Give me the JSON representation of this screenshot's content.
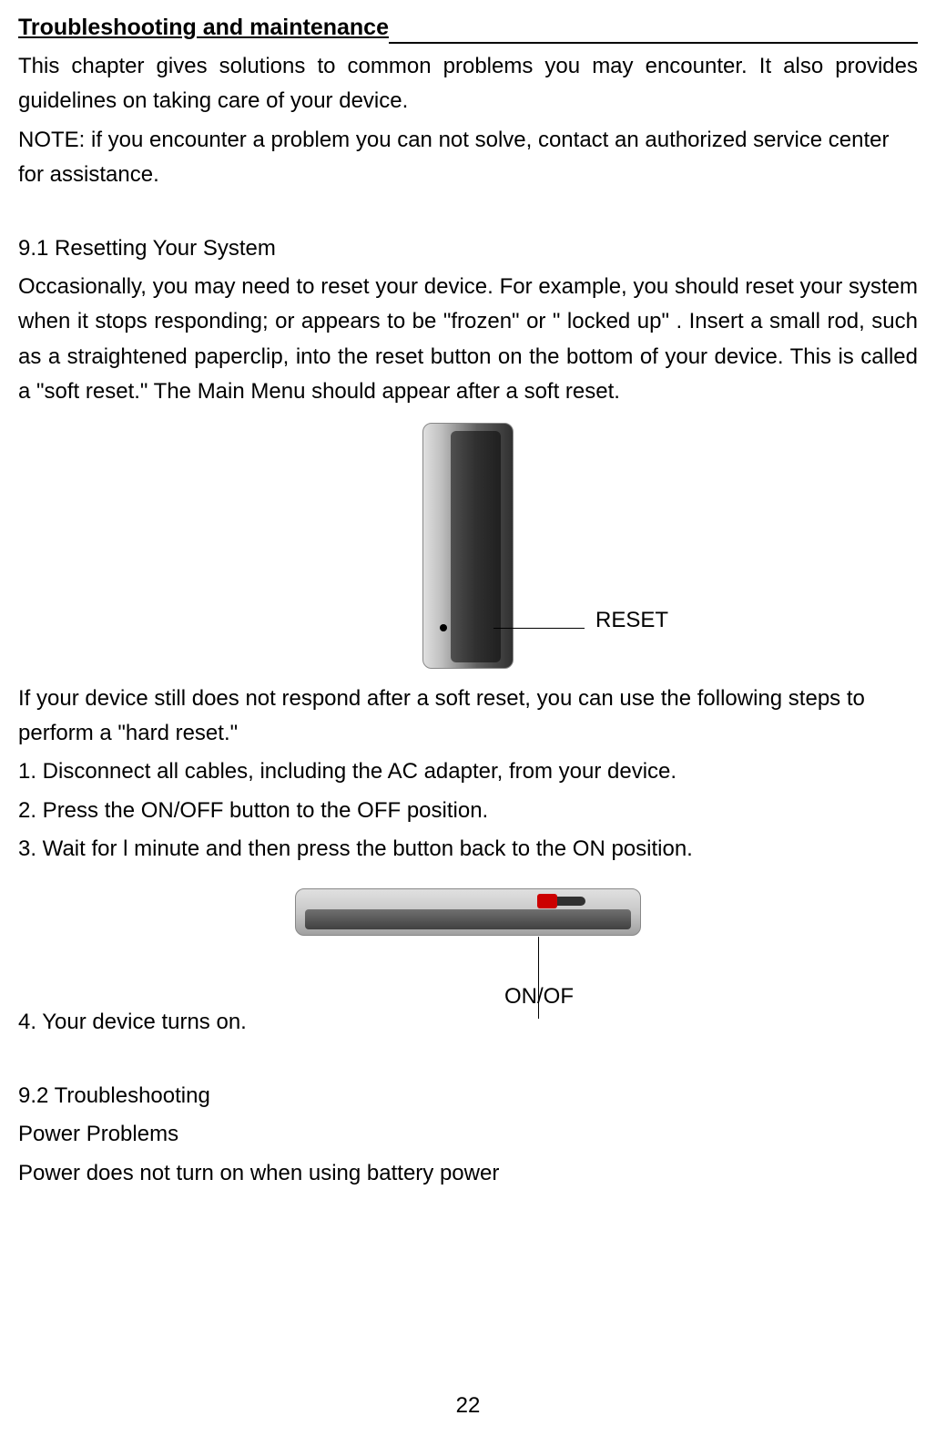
{
  "title": "Troubleshooting and maintenance",
  "intro": "This chapter gives solutions to common problems you may encounter. It also provides guidelines on taking care of your device.",
  "note": "NOTE: if you encounter a problem you can not solve, contact an authorized service center for assistance.",
  "section9_1_heading": "9.1 Resetting Your System",
  "section9_1_body": "Occasionally, you may need to reset your device. For example, you should reset your system when it stops responding; or appears to be \"frozen\" or \" locked up\" . Insert a small rod, such as a straightened paperclip, into the reset button on the bottom of your device. This is called a \"soft reset.\" The Main Menu should appear after a soft reset.",
  "reset_label": "RESET",
  "hard_reset_intro": "If your device still does not respond after a soft reset, you can use the following steps to perform a \"hard reset.\"",
  "step1": "1. Disconnect all cables, including the AC adapter, from your device.",
  "step2": "2. Press the ON/OFF button to the OFF position.",
  "step3": "3. Wait for l minute and then press the button back to the ON position.",
  "step4": "4. Your device turns on.",
  "onoff_label": "ON/OF",
  "section9_2_heading": "9.2 Troubleshooting",
  "power_problems_heading": "Power Problems",
  "power_problem1": "Power does not turn on when using battery power",
  "page_number": "22",
  "colors": {
    "text": "#000000",
    "background": "#ffffff",
    "device_light": "#e0e0e0",
    "device_dark": "#303030",
    "switch_red": "#cc0000"
  },
  "fonts": {
    "body_size": 24,
    "title_weight": "bold"
  }
}
